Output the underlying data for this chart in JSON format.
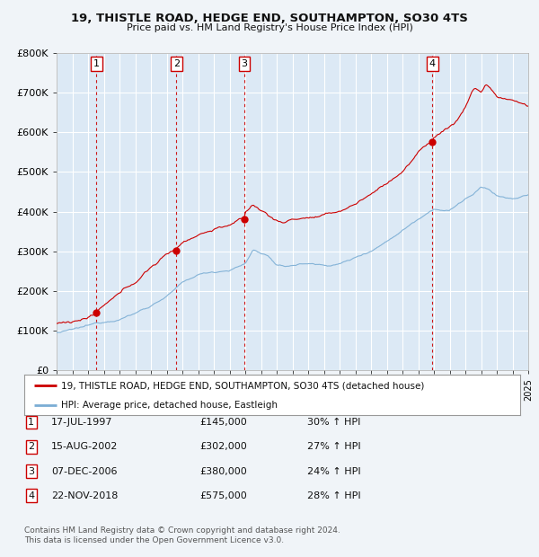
{
  "title": "19, THISTLE ROAD, HEDGE END, SOUTHAMPTON, SO30 4TS",
  "subtitle": "Price paid vs. HM Land Registry's House Price Index (HPI)",
  "ylim": [
    0,
    800000
  ],
  "yticks": [
    0,
    100000,
    200000,
    300000,
    400000,
    500000,
    600000,
    700000,
    800000
  ],
  "ytick_labels": [
    "£0",
    "£100K",
    "£200K",
    "£300K",
    "£400K",
    "£500K",
    "£600K",
    "£700K",
    "£800K"
  ],
  "background_color": "#f0f4f8",
  "plot_bg_color": "#dce9f5",
  "grid_color": "#ffffff",
  "sale_dates_decimal": [
    1997.538,
    2002.619,
    2006.932,
    2018.896
  ],
  "sale_prices": [
    145000,
    302000,
    380000,
    575000
  ],
  "sale_labels": [
    "1",
    "2",
    "3",
    "4"
  ],
  "legend_line1": "19, THISTLE ROAD, HEDGE END, SOUTHAMPTON, SO30 4TS (detached house)",
  "legend_line2": "HPI: Average price, detached house, Eastleigh",
  "table_entries": [
    [
      "1",
      "17-JUL-1997",
      "£145,000",
      "30% ↑ HPI"
    ],
    [
      "2",
      "15-AUG-2002",
      "£302,000",
      "27% ↑ HPI"
    ],
    [
      "3",
      "07-DEC-2006",
      "£380,000",
      "24% ↑ HPI"
    ],
    [
      "4",
      "22-NOV-2018",
      "£575,000",
      "28% ↑ HPI"
    ]
  ],
  "footer": "Contains HM Land Registry data © Crown copyright and database right 2024.\nThis data is licensed under the Open Government Licence v3.0.",
  "red_line_color": "#cc0000",
  "blue_line_color": "#7aadd4",
  "sale_dot_color": "#cc0000",
  "vline_color": "#cc0000"
}
